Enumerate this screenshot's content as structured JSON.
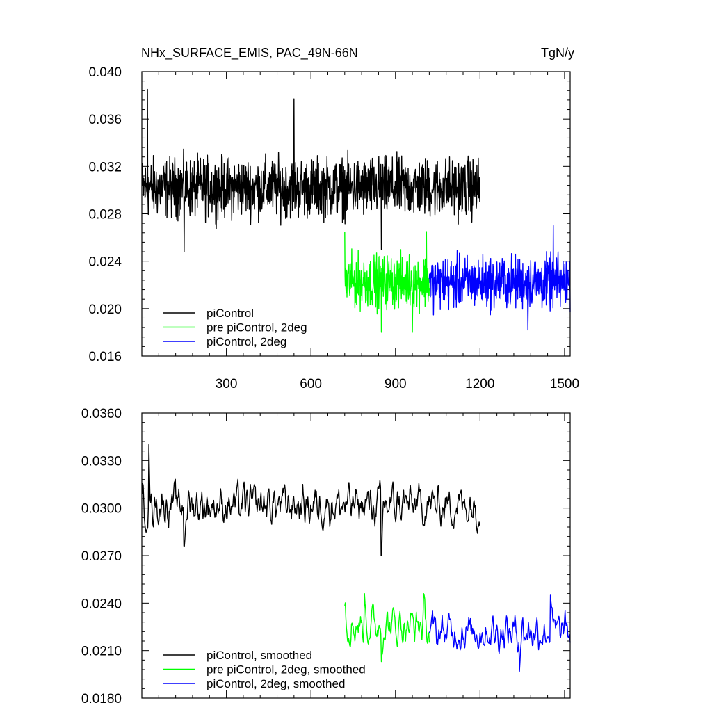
{
  "colors": {
    "black": "#000000",
    "green": "#00ff00",
    "blue": "#0000ff"
  },
  "chart_data": [
    {
      "type": "line",
      "title": "NHx_SURFACE_EMIS, PAC_49N-66N",
      "units": "TgN/y",
      "xlim": [
        0,
        1520
      ],
      "ylim": [
        0.016,
        0.04
      ],
      "yticks": [
        "0.016",
        "0.020",
        "0.024",
        "0.028",
        "0.032",
        "0.036",
        "0.040"
      ],
      "xticks": [
        "300",
        "600",
        "900",
        "1200",
        "1500"
      ],
      "legend_position": "bottom-left",
      "series": [
        {
          "name": "piControl",
          "color": "black",
          "x_start": 1,
          "x_end": 1200,
          "mean": 0.0302,
          "amplitude": 0.0018,
          "sample": [
            [
              20,
              0.0385
            ],
            [
              150,
              0.0248
            ],
            [
              540,
              0.0377
            ],
            [
              850,
              0.025
            ],
            [
              1200,
              0.03
            ]
          ]
        },
        {
          "name": "pre piControl, 2deg",
          "color": "green",
          "x_start": 720,
          "x_end": 1020,
          "mean": 0.0223,
          "amplitude": 0.0016,
          "sample": [
            [
              720,
              0.0265
            ],
            [
              850,
              0.018
            ],
            [
              960,
              0.018
            ],
            [
              1010,
              0.0265
            ]
          ]
        },
        {
          "name": "piControl, 2deg",
          "color": "blue",
          "x_start": 1020,
          "x_end": 1520,
          "mean": 0.0222,
          "amplitude": 0.0016,
          "sample": [
            [
              1020,
              0.0225
            ],
            [
              1370,
              0.0182
            ],
            [
              1460,
              0.027
            ],
            [
              1520,
              0.0197
            ]
          ]
        }
      ]
    },
    {
      "type": "line",
      "xlim": [
        0,
        1520
      ],
      "ylim": [
        0.018,
        0.036
      ],
      "yticks": [
        "0.0180",
        "0.0210",
        "0.0240",
        "0.0270",
        "0.0300",
        "0.0330",
        "0.0360"
      ],
      "legend_position": "bottom-left",
      "series": [
        {
          "name": "piControl, smoothed",
          "color": "black",
          "x_start": 1,
          "x_end": 1200,
          "mean": 0.0302,
          "amplitude": 0.001,
          "sample": [
            [
              1,
              0.0309
            ],
            [
              25,
              0.034
            ],
            [
              150,
              0.0276
            ],
            [
              850,
              0.027
            ],
            [
              1200,
              0.0289
            ]
          ]
        },
        {
          "name": "pre piControl, 2deg, smoothed",
          "color": "green",
          "x_start": 720,
          "x_end": 1020,
          "mean": 0.0226,
          "amplitude": 0.0009,
          "sample": [
            [
              720,
              0.0238
            ],
            [
              790,
              0.0246
            ],
            [
              850,
              0.0203
            ],
            [
              1000,
              0.0246
            ],
            [
              1020,
              0.0215
            ]
          ]
        },
        {
          "name": "piControl, 2deg, smoothed",
          "color": "blue",
          "x_start": 1020,
          "x_end": 1520,
          "mean": 0.0222,
          "amplitude": 0.0009,
          "sample": [
            [
              1020,
              0.0222
            ],
            [
              1340,
              0.0197
            ],
            [
              1450,
              0.0245
            ],
            [
              1520,
              0.0215
            ]
          ]
        }
      ]
    }
  ]
}
